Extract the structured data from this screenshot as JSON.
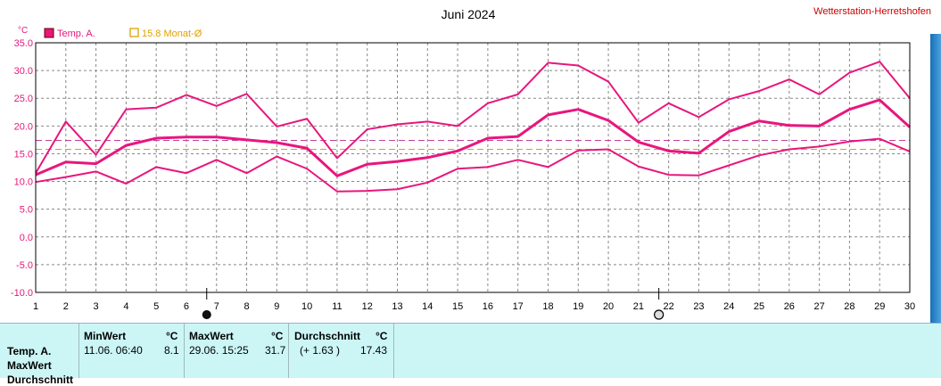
{
  "header": {
    "station": "Wetterstation-Herretshofen",
    "unit": "°C"
  },
  "legend": {
    "series_label": "Temp. A.",
    "avg_label": "15.8 Monat-Ø"
  },
  "colors": {
    "series": "#e8167d",
    "avg": "#e0a000",
    "ref": "#c0409a",
    "grid": "#888888"
  },
  "chart_data": {
    "type": "line",
    "title": "Juni 2024",
    "ylabel": "°C",
    "xlabel": "",
    "x": [
      1,
      2,
      3,
      4,
      5,
      6,
      7,
      8,
      9,
      10,
      11,
      12,
      13,
      14,
      15,
      16,
      17,
      18,
      19,
      20,
      21,
      22,
      23,
      24,
      25,
      26,
      27,
      28,
      29,
      30
    ],
    "ylim": [
      -10,
      35
    ],
    "yticks": [
      "35.0",
      "30.0",
      "25.0",
      "20.0",
      "15.0",
      "10.0",
      "5.0",
      "0.0",
      "-5.0",
      "-10.0"
    ],
    "grid": true,
    "series": [
      {
        "name": "Temp. A.",
        "role": "max",
        "values": [
          11.5,
          20.8,
          14.8,
          23.0,
          23.3,
          25.6,
          23.6,
          25.8,
          19.9,
          21.3,
          14.2,
          19.4,
          20.3,
          20.8,
          20.0,
          24.1,
          25.7,
          31.4,
          30.9,
          28.0,
          20.6,
          24.1,
          21.6,
          24.8,
          26.3,
          28.4,
          25.7,
          29.6,
          31.6,
          25.0
        ]
      },
      {
        "role": "avg",
        "values": [
          11.2,
          13.5,
          13.2,
          16.5,
          17.8,
          18.0,
          18.0,
          17.5,
          17.0,
          16.0,
          11.0,
          13.1,
          13.6,
          14.3,
          15.5,
          17.8,
          18.1,
          22.0,
          23.0,
          21.0,
          17.1,
          15.5,
          15.1,
          19.0,
          20.9,
          20.1,
          20.0,
          23.0,
          24.7,
          19.8
        ]
      },
      {
        "role": "min",
        "values": [
          9.9,
          10.8,
          11.8,
          9.6,
          12.6,
          11.5,
          13.9,
          11.5,
          14.5,
          12.3,
          8.2,
          8.3,
          8.6,
          9.8,
          12.3,
          12.6,
          13.9,
          12.6,
          15.6,
          15.8,
          12.7,
          11.2,
          11.1,
          12.9,
          14.7,
          15.8,
          16.3,
          17.2,
          17.7,
          15.4
        ]
      }
    ],
    "reference_lines": [
      {
        "name": "15.8 Monat-Ø",
        "value": 15.8,
        "color": "#e0a000"
      },
      {
        "value": 17.4,
        "color": "#c0409a"
      }
    ],
    "markers": [
      {
        "x": 7,
        "icon": "new-moon"
      },
      {
        "x": 22,
        "icon": "full-moon"
      }
    ]
  },
  "stats": {
    "row_labels": [
      "Temp. A.",
      "MaxWert",
      "Durchschnitt"
    ],
    "min_header": "MinWert",
    "max_header": "MaxWert",
    "avg_header": "Durchschnitt",
    "unit": "°C",
    "min_when": "11.06.  06:40",
    "min_value": "8.1",
    "max_when": "29.06.  15:25",
    "max_value": "31.7",
    "avg_diff": "(+ 1.63 )",
    "avg_value": "17.43"
  }
}
